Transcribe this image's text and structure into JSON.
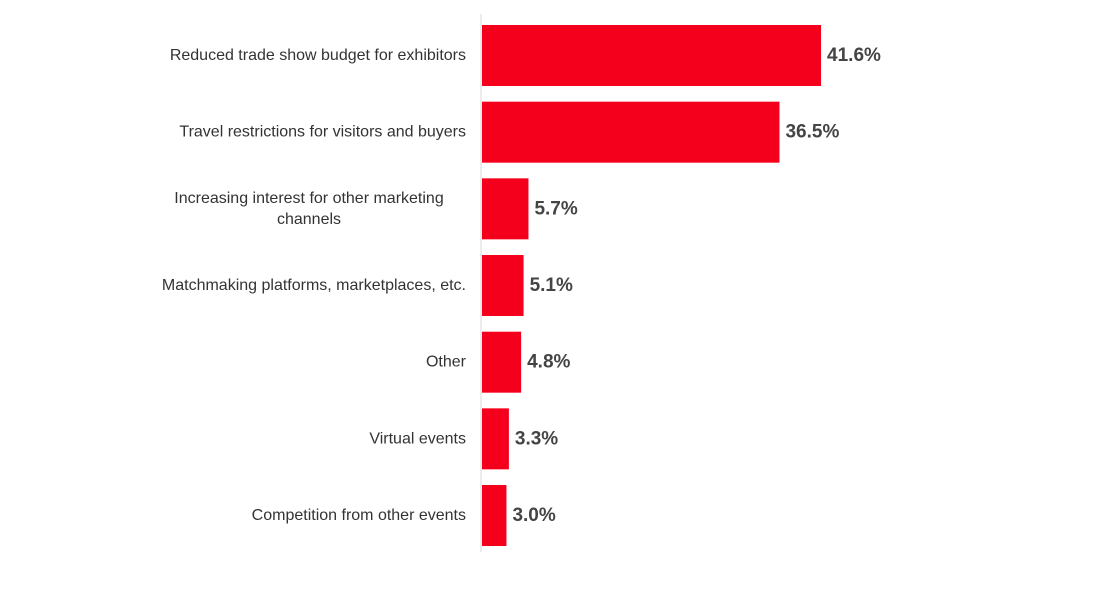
{
  "chart_data": {
    "type": "bar",
    "orientation": "horizontal",
    "categories": [
      "Reduced trade show budget for exhibitors",
      "Travel restrictions for visitors and buyers",
      "Increasing interest for other marketing channels",
      "Matchmaking platforms, marketplaces, etc.",
      "Other",
      "Virtual events",
      "Competition from other events"
    ],
    "category_lines": [
      [
        "Reduced trade show budget for exhibitors"
      ],
      [
        "Travel restrictions for visitors and buyers"
      ],
      [
        "Increasing interest for other marketing",
        "channels"
      ],
      [
        "Matchmaking platforms, marketplaces, etc."
      ],
      [
        "Other"
      ],
      [
        "Virtual events"
      ],
      [
        "Competition from other events"
      ]
    ],
    "values": [
      41.6,
      36.5,
      5.7,
      5.1,
      4.8,
      3.3,
      3.0
    ],
    "value_labels": [
      "41.6%",
      "36.5%",
      "5.7%",
      "5.1%",
      "4.8%",
      "3.3%",
      "3.0%"
    ],
    "unit": "%",
    "bar_color": "#f5001c",
    "axis_color": "#d9d9d9",
    "grid": false,
    "legend": "none"
  }
}
